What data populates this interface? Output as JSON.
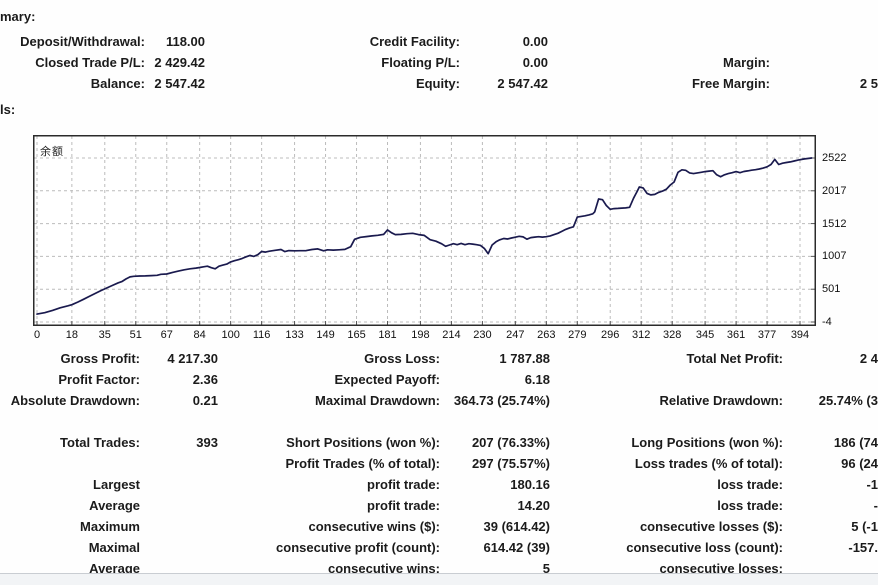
{
  "colors": {
    "line": "#1a1a4e",
    "grid": "#bcbcbc",
    "chart_border": "#2b2b2b",
    "text": "#1b1b1b",
    "divider": "#c9cdd2"
  },
  "summary": {
    "heading_fragment": "mary:",
    "rows": [
      {
        "l1": "Deposit/Withdrawal:",
        "v1": "118.00",
        "l2": "Credit Facility:",
        "v2": "0.00",
        "l3": "",
        "v3": ""
      },
      {
        "l1": "Closed Trade P/L:",
        "v1": "2 429.42",
        "l2": "Floating P/L:",
        "v2": "0.00",
        "l3": "Margin:",
        "v3": ""
      },
      {
        "l1": "Balance:",
        "v1": "2 547.42",
        "l2": "Equity:",
        "v2": "2 547.42",
        "l3": "Free Margin:",
        "v3": "2 5"
      }
    ]
  },
  "details": {
    "heading_fragment": "ls:",
    "rows": [
      {
        "l1": "Gross Profit:",
        "v1": "4 217.30",
        "l2": "Gross Loss:",
        "v2": "1 787.88",
        "l3": "Total Net Profit:",
        "v3": "2 4"
      },
      {
        "l1": "Profit Factor:",
        "v1": "2.36",
        "l2": "Expected Payoff:",
        "v2": "6.18",
        "l3": "",
        "v3": ""
      },
      {
        "l1": "Absolute Drawdown:",
        "v1": "0.21",
        "l2": "Maximal Drawdown:",
        "v2": "364.73 (25.74%)",
        "l3": "Relative Drawdown:",
        "v3": "25.74% (3"
      },
      {
        "l1": "",
        "v1": "",
        "l2": "",
        "v2": "",
        "l3": "",
        "v3": ""
      },
      {
        "l1": "Total Trades:",
        "v1": "393",
        "l2": "Short Positions (won %):",
        "v2": "207 (76.33%)",
        "l3": "Long Positions (won %):",
        "v3": "186 (74"
      },
      {
        "l1": "",
        "v1": "",
        "l2": "Profit Trades (% of total):",
        "v2": "297 (75.57%)",
        "l3": "Loss trades (% of total):",
        "v3": "96 (24"
      },
      {
        "l1": "Largest",
        "v1": "",
        "l2": "profit trade:",
        "v2": "180.16",
        "l3": "loss trade:",
        "v3": "-1"
      },
      {
        "l1": "Average",
        "v1": "",
        "l2": "profit trade:",
        "v2": "14.20",
        "l3": "loss trade:",
        "v3": "-"
      },
      {
        "l1": "Maximum",
        "v1": "",
        "l2": "consecutive wins ($):",
        "v2": "39 (614.42)",
        "l3": "consecutive losses ($):",
        "v3": "5 (-1"
      },
      {
        "l1": "Maximal",
        "v1": "",
        "l2": "consecutive profit (count):",
        "v2": "614.42 (39)",
        "l3": "consecutive loss (count):",
        "v3": "-157."
      },
      {
        "l1": "Average",
        "v1": "",
        "l2": "consecutive wins:",
        "v2": "5",
        "l3": "consecutive losses:",
        "v3": ""
      }
    ]
  },
  "chart_data": {
    "type": "line",
    "title": "余额",
    "xlabel": "",
    "ylabel": "",
    "legend": "none",
    "grid": true,
    "xlim": [
      0,
      403
    ],
    "ylim": [
      -4,
      2522
    ],
    "x_ticks": [
      0,
      18,
      35,
      51,
      67,
      84,
      100,
      116,
      133,
      149,
      165,
      181,
      198,
      214,
      230,
      247,
      263,
      279,
      296,
      312,
      328,
      345,
      361,
      377,
      394
    ],
    "y_ticks": [
      2522,
      2017,
      1512,
      1007,
      501,
      -4
    ],
    "series": [
      {
        "name": "Balance",
        "points": [
          [
            0,
            118
          ],
          [
            4,
            140
          ],
          [
            8,
            175
          ],
          [
            12,
            215
          ],
          [
            16,
            245
          ],
          [
            18,
            262
          ],
          [
            21,
            302
          ],
          [
            24,
            345
          ],
          [
            27,
            390
          ],
          [
            30,
            435
          ],
          [
            33,
            480
          ],
          [
            36,
            520
          ],
          [
            39,
            560
          ],
          [
            42,
            600
          ],
          [
            44,
            622
          ],
          [
            46,
            660
          ],
          [
            48,
            690
          ],
          [
            50,
            700
          ],
          [
            53,
            705
          ],
          [
            56,
            706
          ],
          [
            59,
            710
          ],
          [
            62,
            716
          ],
          [
            64,
            730
          ],
          [
            67,
            736
          ],
          [
            70,
            760
          ],
          [
            73,
            780
          ],
          [
            76,
            800
          ],
          [
            79,
            815
          ],
          [
            82,
            826
          ],
          [
            84,
            836
          ],
          [
            86,
            846
          ],
          [
            88,
            856
          ],
          [
            90,
            832
          ],
          [
            92,
            816
          ],
          [
            94,
            856
          ],
          [
            96,
            872
          ],
          [
            98,
            888
          ],
          [
            100,
            922
          ],
          [
            102,
            940
          ],
          [
            104,
            956
          ],
          [
            106,
            976
          ],
          [
            108,
            1000
          ],
          [
            110,
            1022
          ],
          [
            112,
            1006
          ],
          [
            114,
            1032
          ],
          [
            116,
            1082
          ],
          [
            118,
            1072
          ],
          [
            120,
            1086
          ],
          [
            123,
            1100
          ],
          [
            126,
            1112
          ],
          [
            128,
            1080
          ],
          [
            130,
            1096
          ],
          [
            133,
            1092
          ],
          [
            136,
            1094
          ],
          [
            139,
            1096
          ],
          [
            142,
            1112
          ],
          [
            145,
            1122
          ],
          [
            148,
            1092
          ],
          [
            150,
            1108
          ],
          [
            153,
            1104
          ],
          [
            156,
            1108
          ],
          [
            159,
            1114
          ],
          [
            162,
            1156
          ],
          [
            164,
            1270
          ],
          [
            167,
            1300
          ],
          [
            170,
            1312
          ],
          [
            173,
            1322
          ],
          [
            176,
            1332
          ],
          [
            179,
            1346
          ],
          [
            181,
            1415
          ],
          [
            183,
            1372
          ],
          [
            185,
            1342
          ],
          [
            188,
            1346
          ],
          [
            191,
            1356
          ],
          [
            194,
            1362
          ],
          [
            197,
            1342
          ],
          [
            200,
            1330
          ],
          [
            203,
            1264
          ],
          [
            206,
            1240
          ],
          [
            209,
            1200
          ],
          [
            211,
            1162
          ],
          [
            213,
            1182
          ],
          [
            215,
            1202
          ],
          [
            217,
            1186
          ],
          [
            219,
            1206
          ],
          [
            221,
            1186
          ],
          [
            223,
            1202
          ],
          [
            225,
            1196
          ],
          [
            227,
            1186
          ],
          [
            229,
            1176
          ],
          [
            231,
            1130
          ],
          [
            233,
            1048
          ],
          [
            235,
            1182
          ],
          [
            237,
            1232
          ],
          [
            239,
            1262
          ],
          [
            241,
            1282
          ],
          [
            243,
            1274
          ],
          [
            245,
            1290
          ],
          [
            247,
            1302
          ],
          [
            249,
            1316
          ],
          [
            251,
            1306
          ],
          [
            253,
            1272
          ],
          [
            255,
            1296
          ],
          [
            257,
            1304
          ],
          [
            259,
            1310
          ],
          [
            261,
            1304
          ],
          [
            263,
            1310
          ],
          [
            265,
            1322
          ],
          [
            267,
            1342
          ],
          [
            269,
            1362
          ],
          [
            271,
            1392
          ],
          [
            273,
            1422
          ],
          [
            275,
            1446
          ],
          [
            277,
            1462
          ],
          [
            279,
            1612
          ],
          [
            281,
            1622
          ],
          [
            283,
            1632
          ],
          [
            285,
            1646
          ],
          [
            287,
            1662
          ],
          [
            288,
            1692
          ],
          [
            290,
            1890
          ],
          [
            292,
            1880
          ],
          [
            294,
            1790
          ],
          [
            296,
            1732
          ],
          [
            298,
            1742
          ],
          [
            300,
            1746
          ],
          [
            302,
            1750
          ],
          [
            304,
            1754
          ],
          [
            306,
            1762
          ],
          [
            308,
            1902
          ],
          [
            310,
            2012
          ],
          [
            311,
            2076
          ],
          [
            313,
            2062
          ],
          [
            315,
            1976
          ],
          [
            317,
            1954
          ],
          [
            319,
            1962
          ],
          [
            321,
            1992
          ],
          [
            323,
            2012
          ],
          [
            325,
            2042
          ],
          [
            327,
            2106
          ],
          [
            329,
            2152
          ],
          [
            331,
            2302
          ],
          [
            333,
            2340
          ],
          [
            335,
            2332
          ],
          [
            337,
            2292
          ],
          [
            339,
            2282
          ],
          [
            341,
            2292
          ],
          [
            343,
            2302
          ],
          [
            345,
            2312
          ],
          [
            347,
            2320
          ],
          [
            349,
            2326
          ],
          [
            351,
            2264
          ],
          [
            353,
            2232
          ],
          [
            355,
            2264
          ],
          [
            357,
            2282
          ],
          [
            359,
            2296
          ],
          [
            361,
            2312
          ],
          [
            363,
            2296
          ],
          [
            365,
            2314
          ],
          [
            367,
            2324
          ],
          [
            369,
            2334
          ],
          [
            371,
            2342
          ],
          [
            373,
            2352
          ],
          [
            375,
            2366
          ],
          [
            377,
            2386
          ],
          [
            379,
            2422
          ],
          [
            381,
            2500
          ],
          [
            383,
            2422
          ],
          [
            385,
            2442
          ],
          [
            387,
            2452
          ],
          [
            389,
            2462
          ],
          [
            391,
            2476
          ],
          [
            393,
            2490
          ],
          [
            396,
            2506
          ],
          [
            400,
            2522
          ]
        ]
      }
    ]
  }
}
